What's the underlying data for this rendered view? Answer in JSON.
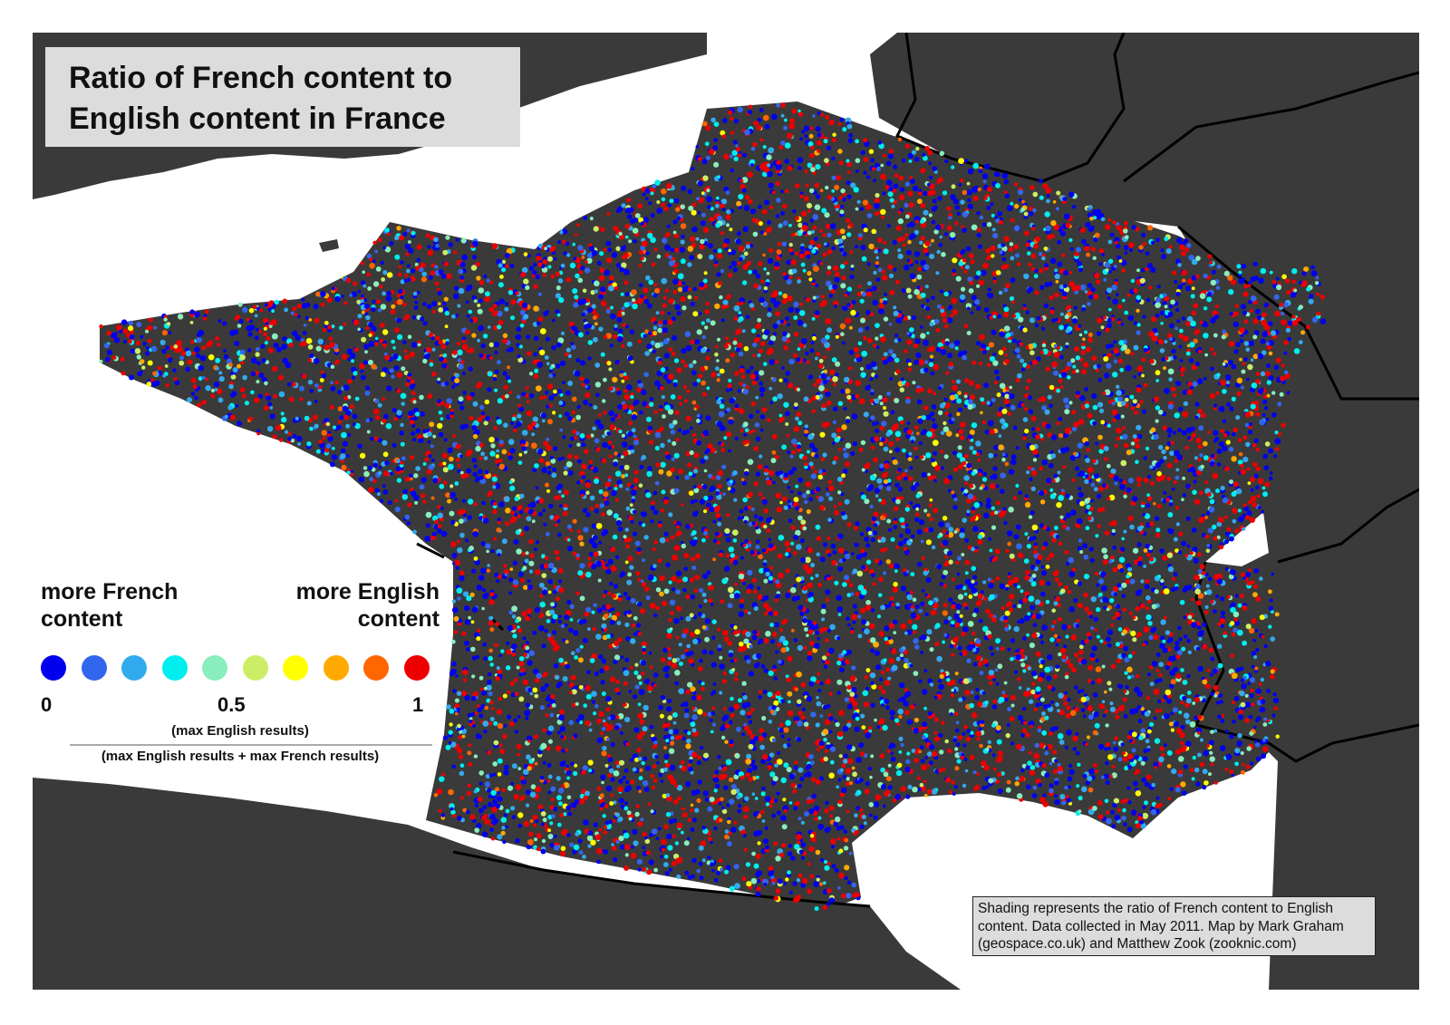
{
  "title": {
    "line1": "Ratio of French content to",
    "line2": "English content in France"
  },
  "legend": {
    "left_label_line1": "more French",
    "left_label_line2": "content",
    "right_label_line1": "more English",
    "right_label_line2": "content",
    "scale_colors": [
      "#0000ee",
      "#3366ee",
      "#33aaee",
      "#00eeee",
      "#88eebb",
      "#ccee66",
      "#ffff00",
      "#ffaa00",
      "#ff6600",
      "#ee0000"
    ],
    "ticks": {
      "min": "0",
      "mid": "0.5",
      "max": "1"
    },
    "formula_numerator": "(max English results)",
    "formula_denominator": "(max English results + max French results)"
  },
  "caption": {
    "line1": "Shading represents the ratio of French content to English",
    "line2": "content. Data collected in May 2011. Map by Mark Graham",
    "line3": "(geospace.co.uk) and Matthew Zook (zooknic.com)"
  },
  "colors": {
    "land": "#3a3a3a",
    "sea": "#ffffff",
    "border": "#000000"
  }
}
